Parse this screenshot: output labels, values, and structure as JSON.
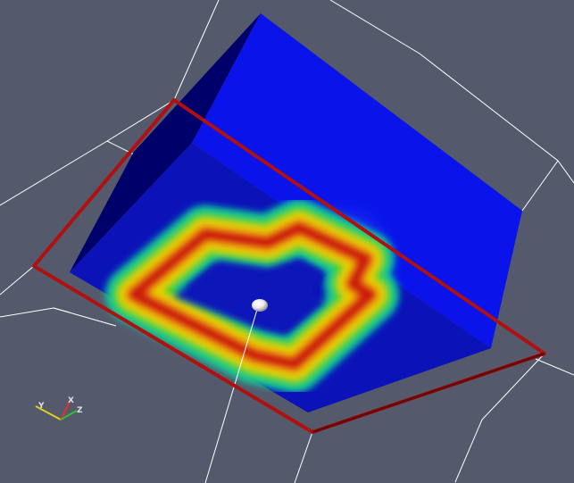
{
  "viewport": {
    "background_color": "#545a6c",
    "wireframe_color": "#ffffff",
    "volume_color": "#0a10e8",
    "volume_front_face_color": "#0a10c0",
    "widget_box_color": "#b01010",
    "probe_sphere_color": "#f0f0f0",
    "contour_colormap": [
      "#1010d0",
      "#00c0a0",
      "#30d020",
      "#f0d000",
      "#e02000"
    ]
  },
  "orientation_axes": {
    "x": {
      "label": "X",
      "color": "#e03030"
    },
    "y": {
      "label": "Y",
      "color": "#e0d020"
    },
    "z": {
      "label": "Z",
      "color": "#30c030"
    }
  }
}
